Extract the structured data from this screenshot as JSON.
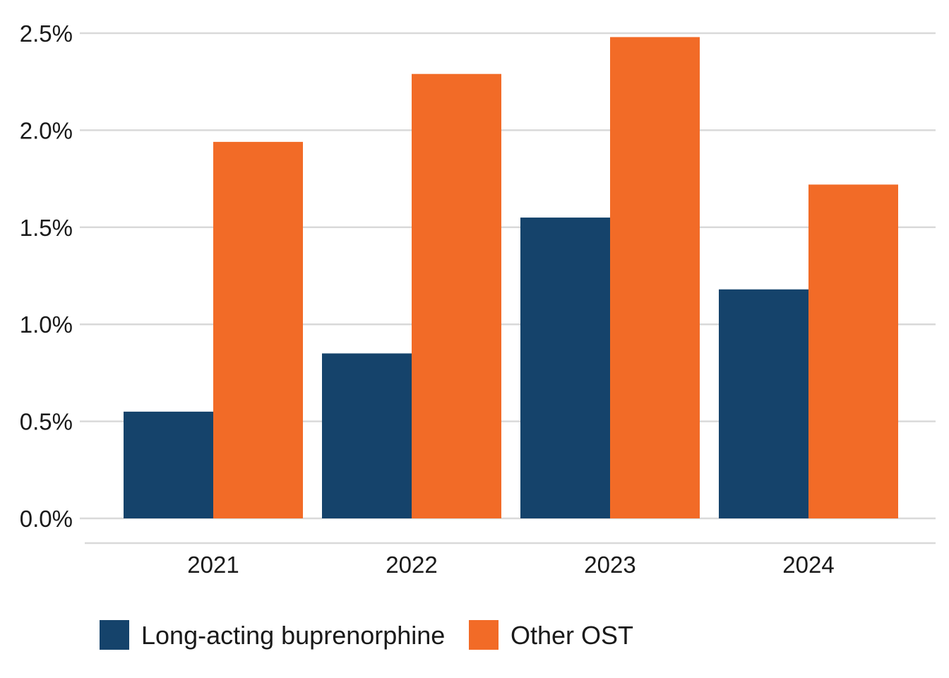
{
  "chart_data": {
    "type": "bar",
    "title": "",
    "xlabel": "",
    "ylabel": "",
    "categories": [
      "2021",
      "2022",
      "2023",
      "2024"
    ],
    "series": [
      {
        "name": "Long-acting buprenorphine",
        "color": "#15436b",
        "values": [
          0.55,
          0.85,
          1.55,
          1.18
        ]
      },
      {
        "name": "Other OST",
        "color": "#f26b27",
        "values": [
          1.94,
          2.29,
          2.48,
          1.72
        ]
      }
    ],
    "y_ticks": [
      "0.0%",
      "0.5%",
      "1.0%",
      "1.5%",
      "2.0%",
      "2.5%"
    ],
    "y_tick_values": [
      0,
      0.5,
      1.0,
      1.5,
      2.0,
      2.5
    ],
    "ylim": [
      0,
      2.5
    ],
    "value_unit": "%",
    "grid": "horizontal",
    "gridline_color": "#d9d9d9",
    "legend_position": "bottom-left"
  }
}
